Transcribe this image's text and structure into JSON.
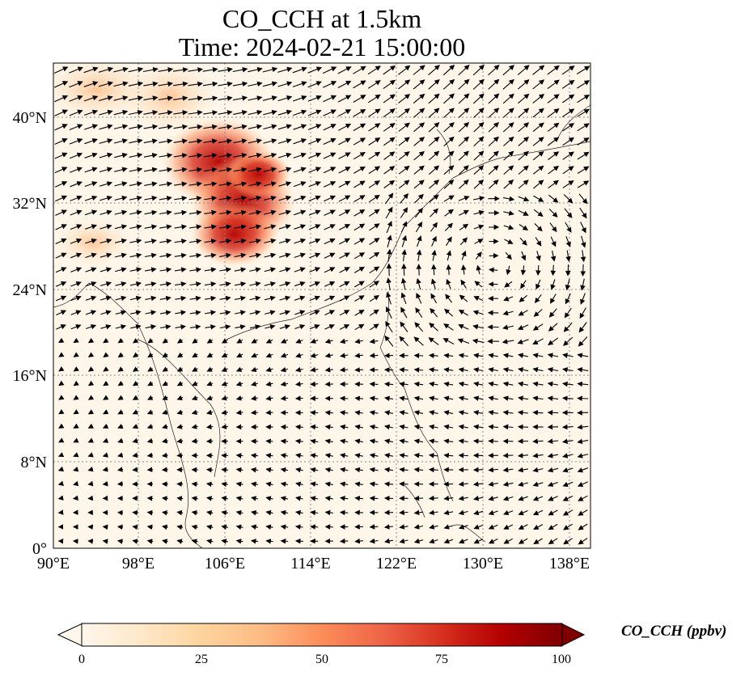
{
  "title": {
    "line1": "CO_CCH at 1.5km",
    "line2": "Time: 2024-02-21 15:00:00"
  },
  "map": {
    "lon_range": [
      90,
      140
    ],
    "lat_range": [
      0,
      45
    ],
    "lon_ticks": [
      "90°E",
      "98°E",
      "106°E",
      "114°E",
      "122°E",
      "130°E",
      "138°E"
    ],
    "lat_ticks": [
      "0°",
      "8°N",
      "16°N",
      "24°N",
      "32°N",
      "40°N"
    ],
    "gridlines": "dotted",
    "field": "CO_CCH",
    "vectors": "wind arrows"
  },
  "colorbar": {
    "label": "CO_CCH (ppbv)",
    "colormap": "OrRd",
    "ticks": [
      "0",
      "25",
      "50",
      "75",
      "100"
    ],
    "range": [
      0,
      100
    ],
    "extend": "both",
    "colors": [
      "#fff7ec",
      "#fee8c8",
      "#fdd49e",
      "#fdbb84",
      "#fc8d59",
      "#ef6548",
      "#d7301f",
      "#b30000",
      "#7f0000"
    ]
  }
}
